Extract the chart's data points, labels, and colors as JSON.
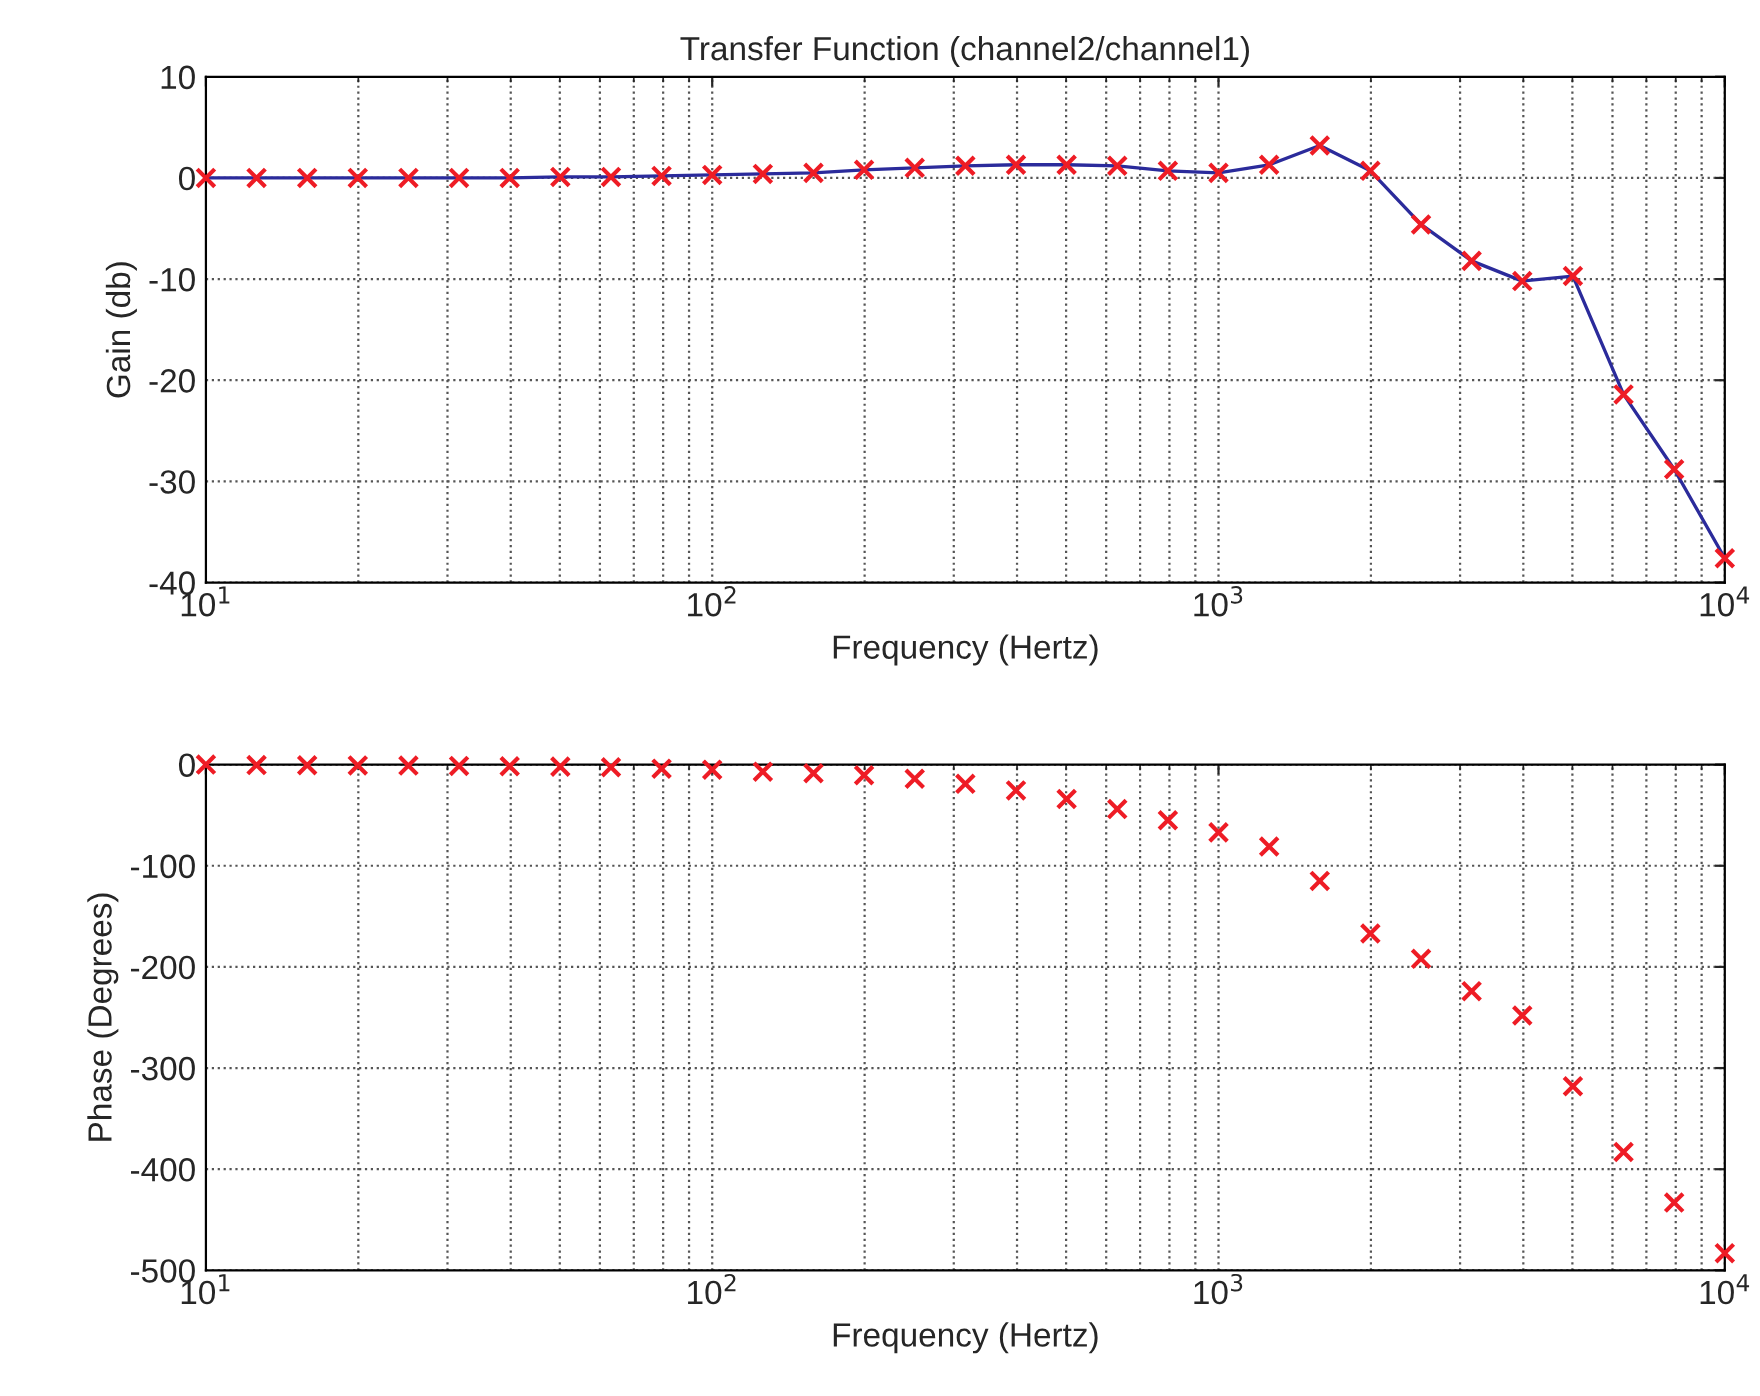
{
  "chart_data": [
    {
      "type": "line",
      "title": "Transfer Function (channel2/channel1)",
      "xlabel": "Frequency (Hertz)",
      "ylabel": "Gain (db)",
      "log": "x",
      "grid": true,
      "x": [
        10,
        12.59,
        15.85,
        19.95,
        25.12,
        31.62,
        39.81,
        50.12,
        63.1,
        79.43,
        100,
        125.9,
        158.5,
        199.5,
        251.2,
        316.2,
        398.1,
        501.2,
        631,
        794.3,
        1000,
        1259,
        1585,
        1995,
        2512,
        3162,
        3981,
        5012,
        6310,
        7943,
        10000
      ],
      "xlim": [
        10,
        10000
      ],
      "xticks": [
        {
          "value": 10,
          "label": "10$^{1}$"
        },
        {
          "value": 100,
          "label": "10$^{2}$"
        },
        {
          "value": 1000,
          "label": "10$^{3}$"
        },
        {
          "value": 10000,
          "label": "10$^{4}$"
        }
      ],
      "ylim": [
        -40,
        10
      ],
      "yticks": [
        -40,
        -30,
        -20,
        -10,
        0,
        10
      ],
      "series": [
        {
          "type": "line",
          "color": "#2b2b9b",
          "marker": "none",
          "values": [
            0,
            0,
            0,
            0,
            0,
            0,
            0,
            0.1,
            0.1,
            0.2,
            0.3,
            0.4,
            0.5,
            0.8,
            1.0,
            1.2,
            1.3,
            1.3,
            1.2,
            0.7,
            0.5,
            1.3,
            3.2,
            0.7,
            -4.6,
            -8.2,
            -10.2,
            -9.7,
            -21.4,
            -28.8,
            -37.6
          ]
        },
        {
          "type": "scatter",
          "color": "#ee1c25",
          "marker": "cross",
          "values": [
            0,
            0,
            0,
            0,
            0,
            0,
            0,
            0.1,
            0.1,
            0.2,
            0.3,
            0.4,
            0.5,
            0.8,
            1.0,
            1.2,
            1.3,
            1.3,
            1.2,
            0.7,
            0.5,
            1.3,
            3.2,
            0.7,
            -4.6,
            -8.2,
            -10.2,
            -9.7,
            -21.4,
            -28.8,
            -37.6
          ]
        }
      ]
    },
    {
      "type": "scatter",
      "xlabel": "Frequency (Hertz)",
      "ylabel": "Phase (Degrees)",
      "log": "x",
      "grid": true,
      "marker": "cross",
      "x": [
        10,
        12.59,
        15.85,
        19.95,
        25.12,
        31.62,
        39.81,
        50.12,
        63.1,
        79.43,
        100,
        125.9,
        158.5,
        199.5,
        251.2,
        316.2,
        398.1,
        501.2,
        631,
        794.3,
        1000,
        1259,
        1585,
        1995,
        2512,
        3162,
        3981,
        5012,
        6310,
        7943,
        10000
      ],
      "xlim": [
        10,
        10000
      ],
      "xticks": [
        {
          "value": 10,
          "label": "10$^{1}$"
        },
        {
          "value": 100,
          "label": "10$^{2}$"
        },
        {
          "value": 1000,
          "label": "10$^{3}$"
        },
        {
          "value": 10000,
          "label": "10$^{4}$"
        }
      ],
      "ylim": [
        -500,
        0
      ],
      "yticks": [
        -500,
        -400,
        -300,
        -200,
        -100,
        0
      ],
      "series": [
        {
          "color": "#ee1c25",
          "values": [
            0,
            -0.5,
            -0.6,
            -0.8,
            -1,
            -1.3,
            -1.6,
            -2,
            -2.6,
            -4,
            -5,
            -7,
            -8.5,
            -10.5,
            -14,
            -19,
            -25.5,
            -34,
            -44,
            -55,
            -67,
            -81,
            -115,
            -167,
            -192,
            -224,
            -248,
            -318,
            -383,
            -433,
            -483
          ]
        }
      ]
    }
  ]
}
